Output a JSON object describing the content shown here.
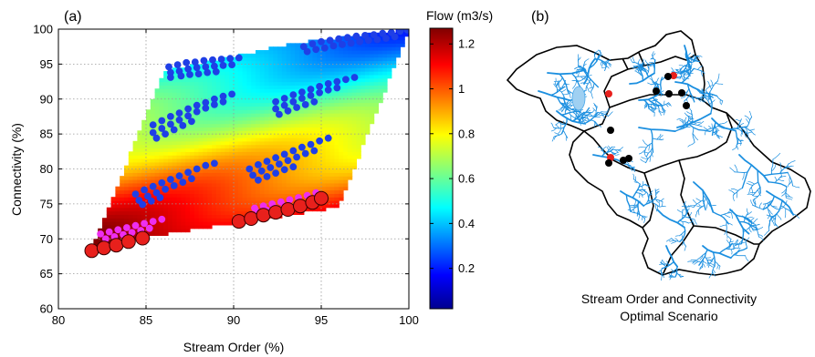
{
  "chart_data": [
    {
      "type": "scatter",
      "panel_label": "(a)",
      "xlabel": "Stream Order (%)",
      "ylabel": "Connectivity (%)",
      "xlim": [
        80,
        100
      ],
      "ylim": [
        60,
        100
      ],
      "xticks": [
        "80",
        "85",
        "90",
        "95",
        "100"
      ],
      "yticks": [
        "60",
        "65",
        "70",
        "75",
        "80",
        "85",
        "90",
        "95",
        "100"
      ],
      "grid": true,
      "surface": {
        "description_value": "Flow surface",
        "corners": [
          [
            82,
            69
          ],
          [
            88,
            71.5
          ],
          [
            96,
            74.5
          ],
          [
            100,
            100
          ],
          [
            93.5,
            98
          ],
          [
            86,
            94
          ]
        ]
      },
      "colorbar": {
        "title": "Flow (m3/s)",
        "range": [
          0.02,
          1.27
        ],
        "ticks": [
          "0.2",
          "0.4",
          "0.6",
          "0.8",
          "1",
          "1.2"
        ],
        "tick_values": [
          0.2,
          0.4,
          0.6,
          0.8,
          1.0,
          1.2
        ],
        "colormap": "jet"
      },
      "series": [
        {
          "color": "#1f3fe6",
          "marker": "dot",
          "points": [
            [
              86.3,
              94.6
            ],
            [
              86.8,
              94.9
            ],
            [
              87.3,
              95.2
            ],
            [
              87.8,
              95.3
            ],
            [
              88.3,
              95.5
            ],
            [
              88.8,
              95.6
            ],
            [
              89.3,
              95.7
            ],
            [
              89.8,
              95.8
            ],
            [
              90.3,
              95.9
            ],
            [
              86.4,
              93.8
            ],
            [
              86.9,
              94.0
            ],
            [
              87.4,
              94.3
            ],
            [
              87.9,
              94.5
            ],
            [
              88.4,
              94.6
            ],
            [
              88.9,
              94.7
            ],
            [
              89.4,
              94.8
            ],
            [
              89.9,
              94.9
            ],
            [
              86.4,
              93.1
            ],
            [
              87.0,
              93.3
            ],
            [
              87.5,
              93.5
            ],
            [
              88.0,
              93.6
            ],
            [
              88.5,
              93.8
            ],
            [
              89.0,
              93.9
            ],
            [
              94.0,
              97.5
            ],
            [
              94.5,
              97.9
            ],
            [
              95.0,
              98.2
            ],
            [
              95.5,
              98.4
            ],
            [
              96.0,
              98.6
            ],
            [
              96.5,
              98.8
            ],
            [
              97.0,
              99.0
            ],
            [
              97.5,
              99.1
            ],
            [
              98.0,
              99.2
            ],
            [
              98.5,
              99.4
            ],
            [
              99.0,
              99.5
            ],
            [
              99.5,
              99.7
            ],
            [
              99.9,
              99.9
            ],
            [
              94.2,
              96.8
            ],
            [
              94.7,
              97.1
            ],
            [
              95.2,
              97.3
            ],
            [
              95.7,
              97.6
            ],
            [
              96.2,
              97.8
            ],
            [
              96.7,
              98.0
            ],
            [
              97.2,
              98.2
            ],
            [
              97.7,
              98.4
            ],
            [
              98.2,
              98.5
            ],
            [
              98.7,
              98.7
            ],
            [
              99.2,
              98.9
            ],
            [
              85.4,
              86.3
            ],
            [
              85.9,
              86.9
            ],
            [
              86.4,
              87.5
            ],
            [
              86.9,
              88.0
            ],
            [
              87.4,
              88.6
            ],
            [
              87.9,
              89.1
            ],
            [
              88.4,
              89.5
            ],
            [
              88.9,
              90.0
            ],
            [
              89.4,
              90.4
            ],
            [
              89.9,
              90.7
            ],
            [
              85.4,
              85.2
            ],
            [
              85.9,
              85.8
            ],
            [
              86.4,
              86.4
            ],
            [
              86.9,
              87.0
            ],
            [
              87.4,
              87.6
            ],
            [
              87.9,
              88.2
            ],
            [
              88.4,
              88.7
            ],
            [
              88.9,
              89.2
            ],
            [
              89.4,
              89.6
            ],
            [
              85.6,
              84.4
            ],
            [
              86.1,
              85.0
            ],
            [
              86.6,
              85.6
            ],
            [
              87.1,
              86.2
            ],
            [
              87.6,
              86.8
            ],
            [
              92.4,
              89.6
            ],
            [
              92.9,
              90.1
            ],
            [
              93.4,
              90.6
            ],
            [
              93.9,
              91.0
            ],
            [
              94.4,
              91.4
            ],
            [
              94.9,
              91.8
            ],
            [
              95.4,
              92.2
            ],
            [
              95.9,
              92.5
            ],
            [
              96.4,
              92.8
            ],
            [
              96.9,
              93.1
            ],
            [
              92.4,
              88.6
            ],
            [
              92.9,
              89.1
            ],
            [
              93.4,
              89.6
            ],
            [
              93.9,
              90.1
            ],
            [
              94.4,
              90.5
            ],
            [
              94.9,
              90.9
            ],
            [
              95.4,
              91.3
            ],
            [
              95.9,
              91.6
            ],
            [
              92.6,
              87.8
            ],
            [
              93.1,
              88.3
            ],
            [
              93.6,
              88.8
            ],
            [
              94.1,
              89.2
            ],
            [
              94.6,
              89.6
            ],
            [
              84.4,
              76.4
            ],
            [
              84.9,
              77.0
            ],
            [
              85.4,
              77.5
            ],
            [
              85.9,
              78.0
            ],
            [
              86.4,
              78.5
            ],
            [
              86.9,
              79.0
            ],
            [
              87.4,
              79.5
            ],
            [
              87.9,
              80.0
            ],
            [
              88.4,
              80.5
            ],
            [
              88.9,
              80.8
            ],
            [
              84.6,
              75.5
            ],
            [
              85.1,
              76.1
            ],
            [
              85.6,
              76.6
            ],
            [
              86.1,
              77.1
            ],
            [
              86.6,
              77.6
            ],
            [
              87.1,
              78.1
            ],
            [
              87.6,
              78.6
            ],
            [
              84.8,
              74.9
            ],
            [
              85.3,
              75.4
            ],
            [
              85.8,
              75.9
            ],
            [
              90.9,
              80.0
            ],
            [
              91.4,
              80.6
            ],
            [
              91.9,
              81.1
            ],
            [
              92.4,
              81.6
            ],
            [
              92.9,
              82.1
            ],
            [
              93.4,
              82.6
            ],
            [
              93.9,
              83.1
            ],
            [
              94.4,
              83.5
            ],
            [
              94.9,
              84.0
            ],
            [
              95.4,
              84.4
            ],
            [
              91.1,
              79.1
            ],
            [
              91.6,
              79.7
            ],
            [
              92.1,
              80.2
            ],
            [
              92.6,
              80.7
            ],
            [
              93.1,
              81.2
            ],
            [
              93.6,
              81.7
            ],
            [
              94.1,
              82.2
            ],
            [
              94.6,
              82.6
            ],
            [
              91.4,
              78.4
            ],
            [
              91.9,
              78.9
            ],
            [
              92.4,
              79.4
            ],
            [
              92.9,
              79.9
            ],
            [
              93.4,
              80.3
            ]
          ]
        },
        {
          "color": "#ee2ef0",
          "marker": "dot",
          "points": [
            [
              82.4,
              70.7
            ],
            [
              82.9,
              71.0
            ],
            [
              83.4,
              71.3
            ],
            [
              83.9,
              71.6
            ],
            [
              84.4,
              71.9
            ],
            [
              84.9,
              72.2
            ],
            [
              85.4,
              72.5
            ],
            [
              85.9,
              72.8
            ],
            [
              82.7,
              70.0
            ],
            [
              83.2,
              70.3
            ],
            [
              83.7,
              70.6
            ],
            [
              84.2,
              70.9
            ],
            [
              84.7,
              71.2
            ],
            [
              85.2,
              71.5
            ],
            [
              91.2,
              74.4
            ],
            [
              91.7,
              74.7
            ],
            [
              92.2,
              75.0
            ],
            [
              92.7,
              75.3
            ],
            [
              93.2,
              75.6
            ],
            [
              93.7,
              75.9
            ],
            [
              94.2,
              76.2
            ],
            [
              94.7,
              76.6
            ],
            [
              91.4,
              73.8
            ],
            [
              91.9,
              74.1
            ],
            [
              92.4,
              74.4
            ],
            [
              92.9,
              74.7
            ]
          ]
        },
        {
          "color": "#e8201c",
          "marker": "circle",
          "points": [
            [
              81.9,
              68.3
            ],
            [
              82.6,
              68.7
            ],
            [
              83.3,
              69.1
            ],
            [
              84.0,
              69.6
            ],
            [
              84.8,
              70.1
            ],
            [
              90.3,
              72.5
            ],
            [
              91.0,
              72.9
            ],
            [
              91.7,
              73.4
            ],
            [
              92.4,
              73.8
            ],
            [
              93.1,
              74.2
            ],
            [
              93.8,
              74.7
            ],
            [
              94.5,
              75.2
            ],
            [
              95.0,
              75.8
            ]
          ]
        }
      ]
    },
    {
      "type": "map",
      "panel_label": "(b)",
      "caption_line1": "Stream Order and Connectivity",
      "caption_line2": "Optimal Scenario",
      "river_color": "#1b8fe0",
      "boundary_color": "#000000",
      "markers": [
        {
          "color": "#e8201c",
          "description": "optimal scenario site (red)"
        },
        {
          "color": "#000000",
          "description": "optimal scenario site (black)"
        }
      ]
    }
  ]
}
